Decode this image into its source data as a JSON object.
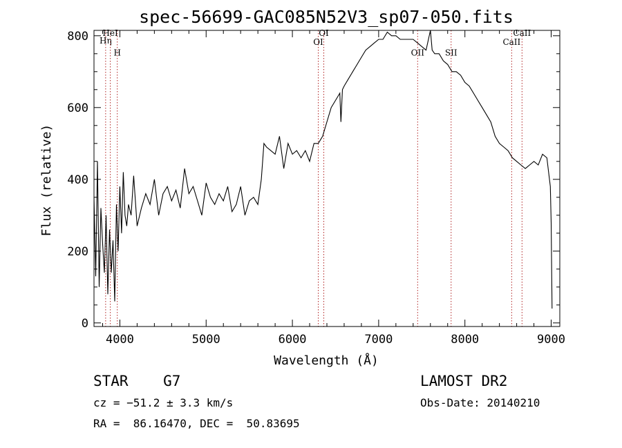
{
  "chart_data": {
    "type": "line",
    "title": "spec-56699-GAC085N52V3_sp07-050.fits",
    "xlabel": "Wavelength (Å)",
    "ylabel": "Flux (relative)",
    "xlim": [
      3700,
      9100
    ],
    "ylim": [
      -10,
      815
    ],
    "x_ticks": [
      4000,
      5000,
      6000,
      7000,
      8000,
      9000
    ],
    "y_ticks": [
      0,
      200,
      400,
      600,
      800
    ],
    "grid": false,
    "series": [
      {
        "x": [
          3700,
          3720,
          3740,
          3760,
          3780,
          3800,
          3820,
          3840,
          3860,
          3880,
          3900,
          3920,
          3940,
          3960,
          3980,
          4000,
          4020,
          4040,
          4060,
          4080,
          4100,
          4130,
          4160,
          4200,
          4250,
          4300,
          4350,
          4400,
          4450,
          4500,
          4550,
          4600,
          4650,
          4700,
          4750,
          4800,
          4850,
          4900,
          4950,
          5000,
          5050,
          5100,
          5150,
          5200,
          5250,
          5300,
          5350,
          5400,
          5450,
          5500,
          5550,
          5600,
          5640,
          5670,
          5700,
          5750,
          5800,
          5850,
          5900,
          5950,
          6000,
          6050,
          6100,
          6150,
          6200,
          6250,
          6300,
          6350,
          6400,
          6450,
          6500,
          6550,
          6563,
          6580,
          6600,
          6650,
          6700,
          6750,
          6800,
          6850,
          6900,
          6950,
          7000,
          7050,
          7100,
          7150,
          7200,
          7250,
          7300,
          7350,
          7400,
          7450,
          7500,
          7550,
          7600,
          7620,
          7650,
          7700,
          7750,
          7800,
          7850,
          7900,
          7950,
          8000,
          8050,
          8100,
          8150,
          8200,
          8250,
          8300,
          8350,
          8400,
          8450,
          8500,
          8550,
          8600,
          8650,
          8700,
          8750,
          8800,
          8850,
          8900,
          8950,
          8990,
          9000,
          9010
        ],
        "values": [
          350,
          130,
          450,
          100,
          320,
          220,
          140,
          300,
          80,
          260,
          140,
          230,
          60,
          330,
          200,
          380,
          250,
          420,
          300,
          270,
          330,
          300,
          410,
          270,
          320,
          360,
          330,
          400,
          300,
          360,
          380,
          340,
          370,
          320,
          430,
          360,
          380,
          340,
          300,
          390,
          350,
          330,
          360,
          340,
          380,
          310,
          330,
          380,
          300,
          340,
          350,
          330,
          400,
          500,
          490,
          480,
          470,
          520,
          430,
          500,
          470,
          480,
          460,
          480,
          450,
          500,
          500,
          520,
          560,
          600,
          620,
          640,
          560,
          650,
          660,
          680,
          700,
          720,
          740,
          760,
          770,
          780,
          790,
          790,
          810,
          800,
          800,
          790,
          790,
          790,
          790,
          780,
          770,
          760,
          830,
          760,
          750,
          750,
          730,
          720,
          700,
          700,
          690,
          670,
          660,
          640,
          620,
          600,
          580,
          560,
          520,
          500,
          490,
          480,
          460,
          450,
          440,
          430,
          440,
          450,
          440,
          470,
          460,
          380,
          280,
          40
        ]
      }
    ],
    "spectral_lines": [
      {
        "label": "Hη",
        "wavelength": 3835,
        "label_y": 778
      },
      {
        "label": "HeI",
        "wavelength": 3889,
        "label_y": 800
      },
      {
        "label": "H",
        "wavelength": 3970,
        "label_y": 745
      },
      {
        "label": "OI",
        "wavelength": 6300,
        "label_y": 775
      },
      {
        "label": "OI",
        "wavelength": 6364,
        "label_y": 800
      },
      {
        "label": "OII",
        "wavelength": 7452,
        "label_y": 745
      },
      {
        "label": "SII",
        "wavelength": 7840,
        "label_y": 745
      },
      {
        "label": "CaII",
        "wavelength": 8542,
        "label_y": 775
      },
      {
        "label": "CaII",
        "wavelength": 8662,
        "label_y": 800
      }
    ]
  },
  "info": {
    "class": "STAR    G7",
    "survey": "LAMOST DR2",
    "cz": "cz = −51.2 ± 3.3 km/s",
    "obs_date": "Obs-Date: 20140210",
    "coords": "RA =  86.16470, DEC =  50.83695"
  }
}
